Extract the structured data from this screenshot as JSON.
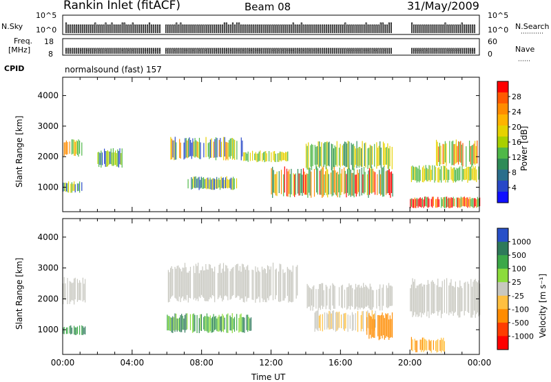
{
  "header": {
    "title": "Rankin Inlet (fitACF)",
    "beam": "Beam 08",
    "date": "31/May/2009"
  },
  "aux_panels": {
    "nsky_label": "N.Sky",
    "nsearch_label": "N.Search",
    "nsky_ticks": [
      "10^5",
      "10^0"
    ],
    "nsearch_ticks": [
      "10^5",
      "10^0"
    ],
    "freq_label_1": "Freq.",
    "freq_label_2": "[MHz]",
    "freq_ticks": [
      "18",
      "8"
    ],
    "nave_label": "Nave",
    "nave_ticks": [
      "60",
      "0"
    ],
    "cpid_label": "CPID",
    "cpid_value": "normalsound (fast) 157"
  },
  "chart_data": [
    {
      "type": "heatmap",
      "name": "power-panel",
      "ylabel": "Slant Range [km]",
      "xlabel": "",
      "yticks": [
        "1000",
        "2000",
        "3000",
        "4000"
      ],
      "ylim": [
        200,
        4600
      ],
      "xlim": [
        0,
        24
      ],
      "colorbar": {
        "label": "Power [dB]",
        "ticks": [
          "28",
          "24",
          "20",
          "16",
          "12",
          "8",
          "4"
        ],
        "colors": [
          "#ff0000",
          "#ff5a00",
          "#ff8c00",
          "#ffb400",
          "#e6d200",
          "#a8d000",
          "#4fb848",
          "#2e8b57",
          "#2a6e8c",
          "#2848c8",
          "#1010ff"
        ]
      },
      "bands": [
        {
          "start": 0.0,
          "end": 1.1,
          "rmin": 2050,
          "rmax": 2500,
          "colors": [
            "#e6d200",
            "#4fb848",
            "#ff8c00"
          ]
        },
        {
          "start": 0.0,
          "end": 1.1,
          "rmin": 850,
          "rmax": 1150,
          "colors": [
            "#2848c8",
            "#4fb848",
            "#e6d200"
          ]
        },
        {
          "start": 2.0,
          "end": 3.7,
          "rmin": 1700,
          "rmax": 2200,
          "colors": [
            "#4fb848",
            "#a8d000",
            "#2848c8"
          ]
        },
        {
          "start": 6.2,
          "end": 10.4,
          "rmin": 1950,
          "rmax": 2550,
          "colors": [
            "#e6d200",
            "#ff8c00",
            "#4fb848",
            "#2848c8"
          ]
        },
        {
          "start": 7.2,
          "end": 10.0,
          "rmin": 950,
          "rmax": 1300,
          "colors": [
            "#2848c8",
            "#4fb848",
            "#e6d200",
            "#2a6e8c"
          ]
        },
        {
          "start": 10.4,
          "end": 13.0,
          "rmin": 1850,
          "rmax": 2150,
          "colors": [
            "#4fb848",
            "#e6d200"
          ]
        },
        {
          "start": 12.0,
          "end": 19.0,
          "rmin": 750,
          "rmax": 1550,
          "colors": [
            "#ff8c00",
            "#e6d200",
            "#ff0000",
            "#4fb848",
            "#2e8b57"
          ]
        },
        {
          "start": 14.0,
          "end": 19.0,
          "rmin": 1650,
          "rmax": 2400,
          "colors": [
            "#2e8b57",
            "#4fb848",
            "#e6d200"
          ]
        },
        {
          "start": 20.0,
          "end": 24.0,
          "rmin": 350,
          "rmax": 650,
          "colors": [
            "#ff0000",
            "#ff8c00",
            "#4fb848"
          ]
        },
        {
          "start": 20.0,
          "end": 24.0,
          "rmin": 1200,
          "rmax": 1650,
          "colors": [
            "#4fb848",
            "#e6d200"
          ]
        },
        {
          "start": 21.5,
          "end": 24.0,
          "rmin": 1750,
          "rmax": 2450,
          "colors": [
            "#ff5a00",
            "#4fb848",
            "#e6d200"
          ]
        }
      ]
    },
    {
      "type": "heatmap",
      "name": "velocity-panel",
      "ylabel": "Slant Range [km]",
      "xlabel": "Time UT",
      "yticks": [
        "1000",
        "2000",
        "3000",
        "4000"
      ],
      "xticks": [
        "00:00",
        "04:00",
        "08:00",
        "12:00",
        "16:00",
        "20:00",
        "00:00"
      ],
      "ylim": [
        200,
        4600
      ],
      "xlim": [
        0,
        24
      ],
      "colorbar": {
        "label": "Velocity [m s⁻¹]",
        "ticks": [
          "1000",
          "500",
          "100",
          "25",
          "-25",
          "-100",
          "-500",
          "-1000"
        ],
        "colors": [
          "#2850c8",
          "#2e7a5a",
          "#3ca848",
          "#8cdc3c",
          "#c8c8c0",
          "#ffc040",
          "#ff8c00",
          "#ff3c00",
          "#ff0000"
        ]
      },
      "bands": [
        {
          "start": 0.0,
          "end": 1.3,
          "rmin": 1900,
          "rmax": 2600,
          "colors": [
            "#c8c8c0"
          ]
        },
        {
          "start": 0.0,
          "end": 1.3,
          "rmin": 850,
          "rmax": 1100,
          "colors": [
            "#3ca848",
            "#2e7a5a"
          ]
        },
        {
          "start": 6.0,
          "end": 13.5,
          "rmin": 2000,
          "rmax": 3000,
          "colors": [
            "#c8c8c0"
          ]
        },
        {
          "start": 6.0,
          "end": 11.0,
          "rmin": 950,
          "rmax": 1450,
          "colors": [
            "#3ca848",
            "#2e7a5a",
            "#8cdc3c"
          ]
        },
        {
          "start": 14.0,
          "end": 19.0,
          "rmin": 1700,
          "rmax": 2400,
          "colors": [
            "#c8c8c0"
          ]
        },
        {
          "start": 14.5,
          "end": 18.0,
          "rmin": 1000,
          "rmax": 1550,
          "colors": [
            "#c8c8c0",
            "#ffc040"
          ]
        },
        {
          "start": 17.5,
          "end": 19.0,
          "rmin": 750,
          "rmax": 1450,
          "colors": [
            "#ff8c00"
          ]
        },
        {
          "start": 20.0,
          "end": 24.0,
          "rmin": 1500,
          "rmax": 2500,
          "colors": [
            "#c8c8c0"
          ]
        },
        {
          "start": 20.0,
          "end": 22.0,
          "rmin": 300,
          "rmax": 700,
          "colors": [
            "#ff8c00",
            "#ffc040"
          ]
        }
      ]
    }
  ]
}
